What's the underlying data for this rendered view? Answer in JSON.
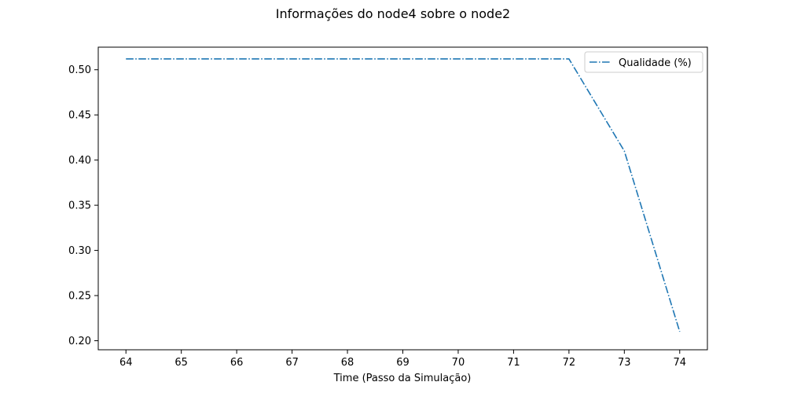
{
  "chart_data": {
    "type": "line",
    "title": "Informações do node4 sobre o node2",
    "xlabel": "Time (Passo da Simulação)",
    "ylabel": "",
    "xlim": [
      63.5,
      74.5
    ],
    "ylim": [
      0.19,
      0.525
    ],
    "xticks": [
      64,
      65,
      66,
      67,
      68,
      69,
      70,
      71,
      72,
      73,
      74
    ],
    "yticks": [
      0.2,
      0.25,
      0.3,
      0.35,
      0.4,
      0.45,
      0.5
    ],
    "ytick_labels": [
      "0.20",
      "0.25",
      "0.30",
      "0.35",
      "0.40",
      "0.45",
      "0.50"
    ],
    "grid": false,
    "legend_position": "top-right",
    "series": [
      {
        "name": "Qualidade (%)",
        "color": "#1f77b4",
        "linestyle": "dashdot",
        "x": [
          64,
          65,
          66,
          67,
          68,
          69,
          70,
          71,
          72,
          73,
          74
        ],
        "y": [
          0.512,
          0.512,
          0.512,
          0.512,
          0.512,
          0.512,
          0.512,
          0.512,
          0.512,
          0.41,
          0.21
        ]
      }
    ]
  }
}
